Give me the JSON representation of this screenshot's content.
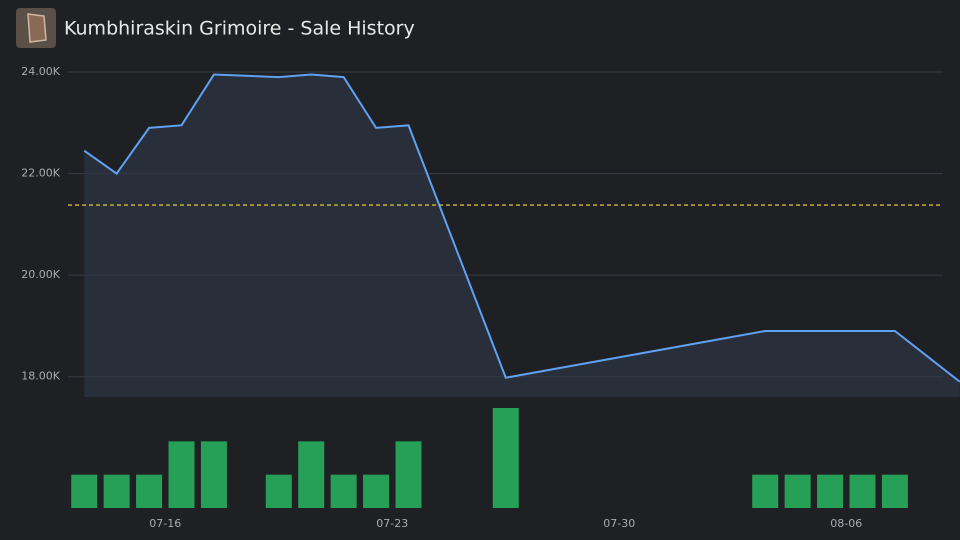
{
  "chart_data": {
    "type": "line",
    "title": "Kumbhiraskin Grimoire - Sale History",
    "xlim": [
      "07-13",
      "08-10"
    ],
    "xticks": [
      "07-16",
      "07-23",
      "07-30",
      "08-06"
    ],
    "ylim": [
      17600,
      24000
    ],
    "yticks": [
      {
        "value": 24000,
        "label": "24.00K"
      },
      {
        "value": 22000,
        "label": "22.00K"
      },
      {
        "value": 20000,
        "label": "20.00K"
      },
      {
        "value": 18000,
        "label": "18.00K"
      }
    ],
    "y2lim": [
      0,
      3
    ],
    "grid": true,
    "average": 21380,
    "average_color": "#d9b92b",
    "series": [
      {
        "type": "line",
        "color": "#5fa1f2",
        "x": [
          "07-13",
          "07-14",
          "07-15",
          "07-16",
          "07-17",
          "07-19",
          "07-20",
          "07-21",
          "07-22",
          "07-23",
          "07-26",
          "08-03",
          "08-04",
          "08-05",
          "08-06",
          "08-07",
          "08-09"
        ],
        "values": [
          22450,
          22000,
          22900,
          22950,
          23950,
          23900,
          23950,
          23900,
          22900,
          22950,
          17980,
          18900,
          18900,
          18900,
          18900,
          18900,
          17900
        ]
      },
      {
        "type": "bar",
        "axis": "y2",
        "color": "#26a057",
        "x": [
          "07-13",
          "07-14",
          "07-15",
          "07-16",
          "07-17",
          "07-19",
          "07-20",
          "07-21",
          "07-22",
          "07-23",
          "07-26",
          "08-03",
          "08-04",
          "08-05",
          "08-06",
          "08-07"
        ],
        "values": [
          1,
          1,
          1,
          2,
          2,
          1,
          2,
          1,
          1,
          2,
          3,
          1,
          1,
          1,
          1,
          1
        ]
      }
    ]
  }
}
